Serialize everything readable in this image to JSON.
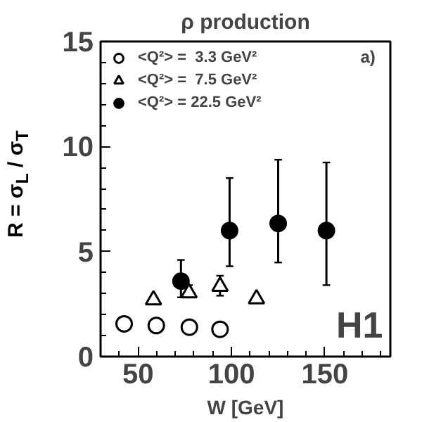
{
  "chart_data": {
    "type": "scatter",
    "title": "ρ production",
    "xlabel": "W [GeV]",
    "ylabel": "R = σ$_{L}$ / σ$_{T}$",
    "xlim": [
      30,
      185
    ],
    "ylim": [
      0,
      15
    ],
    "xticks": [
      50,
      100,
      150
    ],
    "yticks": [
      0,
      5,
      10,
      15
    ],
    "grid": false,
    "legend": "top left",
    "annotations": [
      "a)",
      "H1"
    ],
    "series": [
      {
        "name": "<Q²> =  3.3 GeV²",
        "color": "#ffffff",
        "marker": "circle",
        "x": [
          42.6,
          59.8,
          77.5,
          93.9
        ],
        "values": [
          1.56,
          1.48,
          1.4,
          1.3
        ]
      },
      {
        "name": "<Q²> =  7.5 GeV²",
        "color": "#ffffff",
        "marker": "triangle",
        "x": [
          58.3,
          77.3,
          93.9,
          113.4
        ],
        "values": [
          2.7,
          3.03,
          3.34,
          2.75
        ],
        "errors": [
          null,
          [
            2.9,
            3.4
          ],
          [
            2.9,
            3.85
          ],
          null
        ]
      },
      {
        "name": "<Q²> = 22.5 GeV²",
        "color": "#000000",
        "marker": "circle",
        "x": [
          73,
          99,
          125,
          150.8
        ],
        "values": [
          3.59,
          6.0,
          6.34,
          6.0
        ],
        "errors": [
          [
            2.82,
            4.6
          ],
          [
            4.3,
            8.5
          ],
          [
            4.48,
            9.37
          ],
          [
            3.4,
            9.24
          ]
        ]
      }
    ]
  }
}
